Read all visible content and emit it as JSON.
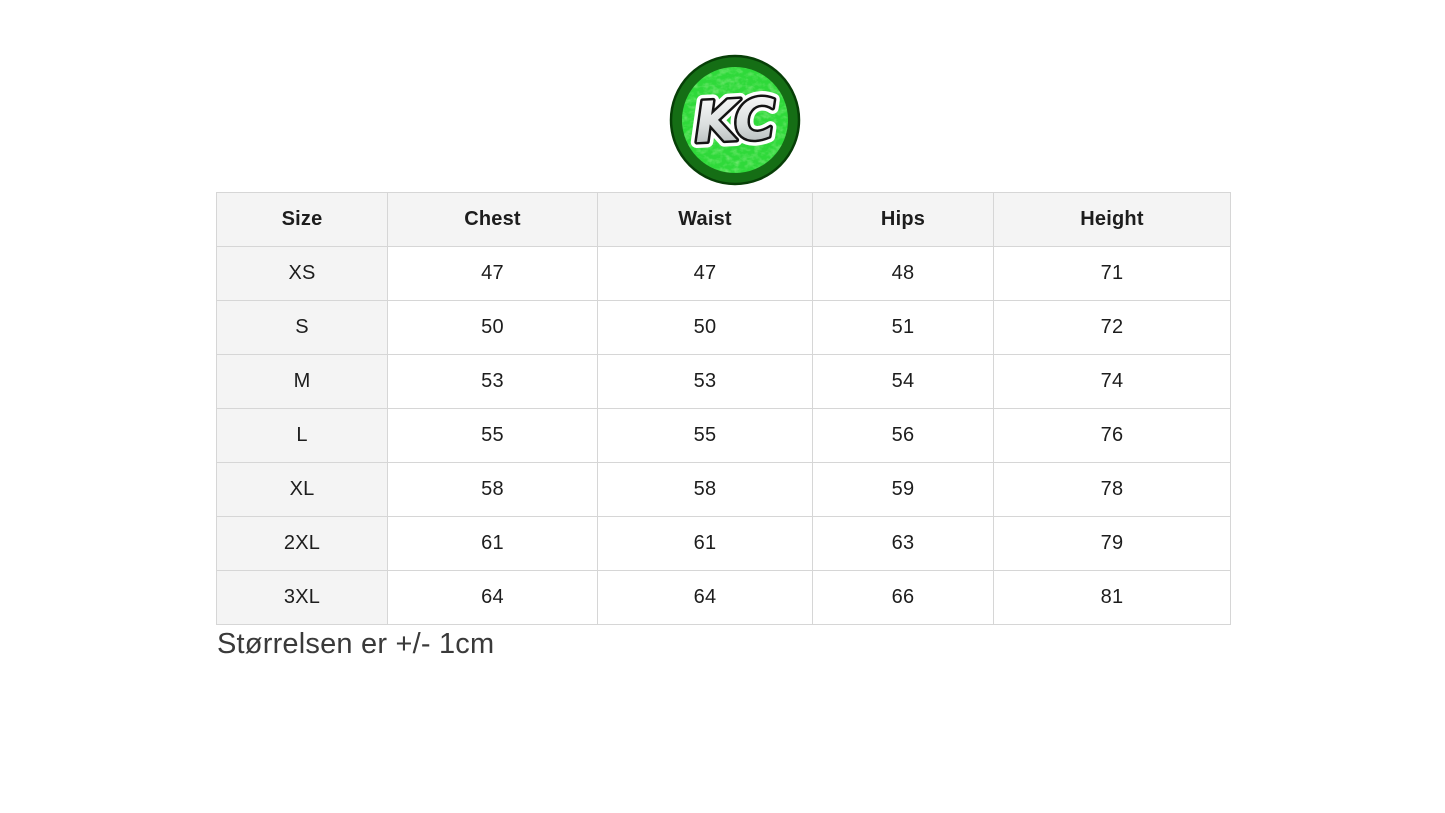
{
  "logo": {
    "initials": "KC",
    "ring_color": "#156e15",
    "ring_edge_color": "#073f07",
    "face_color": "#2fd93a",
    "texture_color": "#7df06c",
    "letter_fill_top": "#ffffff",
    "letter_fill_mid": "#d9dddd",
    "letter_fill_bottom": "#a7aeae",
    "letter_outline_color": "#141414",
    "letter_halo_color": "#ffffff"
  },
  "size_table": {
    "columns": [
      "Size",
      "Chest",
      "Waist",
      "Hips",
      "Height"
    ],
    "rows": [
      [
        "XS",
        "47",
        "47",
        "48",
        "71"
      ],
      [
        "S",
        "50",
        "50",
        "51",
        "72"
      ],
      [
        "M",
        "53",
        "53",
        "54",
        "74"
      ],
      [
        "L",
        "55",
        "55",
        "56",
        "76"
      ],
      [
        "XL",
        "58",
        "58",
        "59",
        "78"
      ],
      [
        "2XL",
        "61",
        "61",
        "63",
        "79"
      ],
      [
        "3XL",
        "64",
        "64",
        "66",
        "81"
      ]
    ]
  },
  "footer": {
    "note": "Størrelsen er +/- 1cm"
  }
}
